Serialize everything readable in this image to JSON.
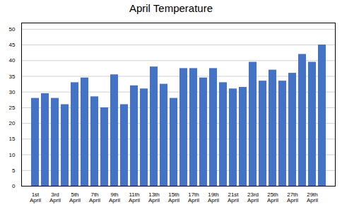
{
  "chart_data": {
    "type": "bar",
    "title": "April Temperature",
    "categories": [
      "1st\nApril",
      null,
      "3rd\nApril",
      null,
      "5th\nApril",
      null,
      "7th\nApril",
      null,
      "9th\nApril",
      null,
      "11th\nApril",
      null,
      "13th\nApril",
      null,
      "15th\nApril",
      null,
      "17th\nApril",
      null,
      "19th\nApril",
      null,
      "21st\nApril",
      null,
      "23rd\nApril",
      null,
      "25th\nApril",
      null,
      "27th\nApril",
      null,
      "29th\nApril",
      null
    ],
    "values": [
      28,
      29.5,
      28,
      26,
      33,
      34.5,
      28.5,
      25,
      35.5,
      26,
      32,
      31,
      38,
      32.5,
      28,
      37.5,
      37.5,
      34.5,
      37.5,
      33,
      31,
      31.5,
      39.5,
      33.5,
      37,
      33.5,
      36,
      42,
      39.5,
      45
    ],
    "color": "#4472C4",
    "ylim": [
      0,
      52
    ],
    "yticks": [
      0,
      5,
      10,
      15,
      20,
      25,
      30,
      35,
      40,
      45,
      50
    ],
    "grid": true
  }
}
